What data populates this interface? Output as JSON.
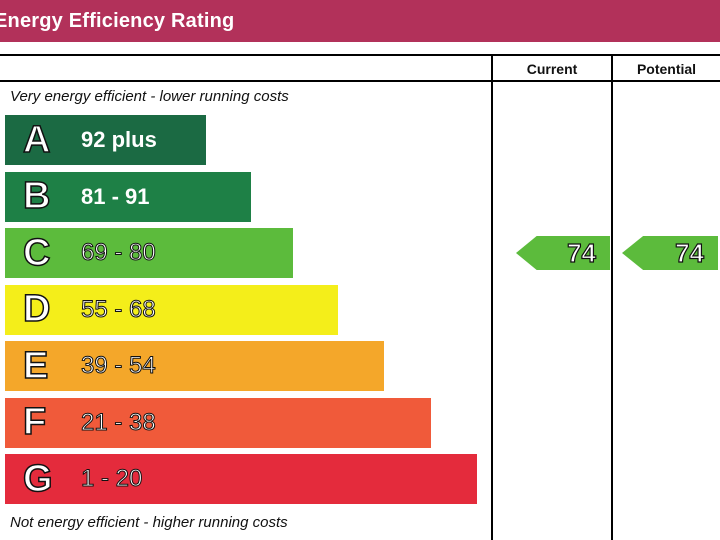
{
  "header": {
    "title": "Energy Efficiency Rating"
  },
  "columns": {
    "current": "Current",
    "potential": "Potential"
  },
  "notes": {
    "top": "Very energy efficient - lower running costs",
    "bottom": "Not energy efficient - higher running costs"
  },
  "chart_data": {
    "type": "bar",
    "title": "Energy Efficiency Rating",
    "bands": [
      {
        "letter": "A",
        "range": "92 plus",
        "color": "#1b6a43"
      },
      {
        "letter": "B",
        "range": "81 - 91",
        "color": "#1e8046"
      },
      {
        "letter": "C",
        "range": "69 - 80",
        "color": "#5cbb3c"
      },
      {
        "letter": "D",
        "range": "55 - 68",
        "color": "#f4ee1a"
      },
      {
        "letter": "E",
        "range": "39 - 54",
        "color": "#f4a72a"
      },
      {
        "letter": "F",
        "range": "21 - 38",
        "color": "#f05a3a"
      },
      {
        "letter": "G",
        "range": "1 - 20",
        "color": "#e42b3c"
      }
    ],
    "current": {
      "value": "74",
      "band": "C"
    },
    "potential": {
      "value": "74",
      "band": "C"
    }
  }
}
